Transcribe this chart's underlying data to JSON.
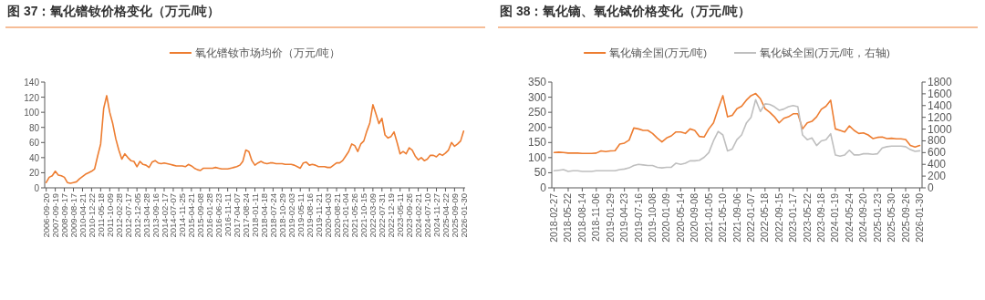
{
  "chart_data": [
    {
      "type": "line",
      "title": "图 37：氧化镨钕价格变化（万元/吨）",
      "legend": "top",
      "grid": false,
      "ylim": [
        0,
        140
      ],
      "yticks": [
        0,
        20,
        40,
        60,
        80,
        100,
        120,
        140
      ],
      "categories": [
        "2006-09-20",
        null,
        null,
        "2007-09-19",
        null,
        null,
        "2008-09-17",
        null,
        null,
        "2009-08-17",
        null,
        null,
        "2010-04-21",
        null,
        null,
        "2010-12-22",
        null,
        null,
        "2011-05-18",
        null,
        null,
        "2011-10-09",
        null,
        null,
        "2012-02-28",
        null,
        null,
        "2012-07-17",
        null,
        null,
        "2012-12-05",
        null,
        null,
        "2013-04-28",
        null,
        null,
        "2013-09-16",
        null,
        null,
        "2014-02-17",
        null,
        null,
        "2014-07-07",
        null,
        null,
        "2014-11-25",
        null,
        null,
        "2015-04-21",
        null,
        null,
        "2015-09-08",
        null,
        null,
        "2016-01-28",
        null,
        null,
        "2016-06-23",
        null,
        null,
        "2016-11-11",
        null,
        null,
        "2017-04-07",
        null,
        null,
        "2017-08-24",
        null,
        null,
        "2018-01-11",
        null,
        null,
        "2018-04-18",
        null,
        null,
        "2018-07-24",
        null,
        null,
        "2018-10-29",
        null,
        null,
        "2019-02-03",
        null,
        null,
        "2019-05-11",
        null,
        null,
        "2019-08-16",
        null,
        null,
        "2019-11-21",
        null,
        null,
        "2020-04-03",
        null,
        null,
        "2020-08-21",
        null,
        null,
        "2021-01-04",
        null,
        null,
        "2021-05-26",
        null,
        null,
        "2021-10-15",
        null,
        null,
        "2022-03-09",
        null,
        null,
        "2022-07-31",
        null,
        null,
        "2022-12-19",
        null,
        null,
        "2023-05-11",
        null,
        null,
        "2023-09-26",
        null,
        null,
        "2024-02-21",
        null,
        null,
        "2024-07-10",
        null,
        null,
        "2024-11-27",
        null,
        null,
        "2025-04-22",
        null,
        null,
        "2025-09-09",
        null,
        null,
        "2026-01-30"
      ],
      "series": [
        {
          "name": "氧化镨钕市场均价（万元/吨）",
          "color": "#ed7d31",
          "values": [
            7,
            14,
            16,
            22,
            17,
            16,
            14,
            7,
            6,
            7,
            8,
            12,
            15,
            18,
            20,
            22,
            25,
            42,
            58,
            105,
            122,
            100,
            85,
            65,
            50,
            38,
            45,
            40,
            36,
            35,
            28,
            35,
            31,
            30,
            27,
            34,
            36,
            33,
            32,
            33,
            32,
            31,
            30,
            29,
            29,
            29,
            28,
            31,
            29,
            26,
            24,
            23,
            26,
            26,
            26,
            26,
            27,
            26,
            25,
            25,
            25,
            26,
            27,
            28,
            30,
            35,
            50,
            48,
            36,
            30,
            33,
            35,
            33,
            32,
            33,
            33,
            32,
            32,
            32,
            31,
            31,
            31,
            30,
            28,
            26,
            33,
            34,
            30,
            31,
            30,
            28,
            28,
            28,
            27,
            27,
            30,
            33,
            33,
            36,
            42,
            48,
            58,
            56,
            48,
            58,
            62,
            75,
            86,
            110,
            98,
            85,
            92,
            70,
            66,
            68,
            74,
            60,
            45,
            48,
            45,
            53,
            50,
            42,
            37,
            40,
            36,
            38,
            43,
            43,
            41,
            45,
            43,
            46,
            50,
            60,
            55,
            58,
            62,
            75
          ]
        }
      ]
    },
    {
      "type": "line",
      "title": "图 38：氧化镝、氧化铽价格变化（万元/吨）",
      "legend": "top",
      "grid": false,
      "ylim": [
        0,
        350
      ],
      "yticks": [
        0,
        50,
        100,
        150,
        200,
        250,
        300,
        350
      ],
      "y2lim": [
        0,
        1800
      ],
      "y2ticks": [
        0,
        200,
        400,
        600,
        800,
        1000,
        1200,
        1400,
        1600,
        1800
      ],
      "categories": [
        "2018-02-27",
        null,
        null,
        "2018-05-22",
        null,
        null,
        "2018-08-14",
        null,
        null,
        "2018-11-06",
        null,
        null,
        "2019-01-29",
        null,
        null,
        "2019-04-23",
        null,
        null,
        "2019-07-16",
        null,
        null,
        "2019-10-08",
        null,
        null,
        "2020-01-09",
        null,
        null,
        "2020-05-14",
        null,
        null,
        "2020-09-08",
        null,
        null,
        "2021-01-05",
        null,
        null,
        "2021-05-10",
        null,
        null,
        "2021-09-06",
        null,
        null,
        "2022-01-07",
        null,
        null,
        "2022-05-18",
        null,
        null,
        "2022-09-15",
        null,
        null,
        "2023-01-17",
        null,
        null,
        "2023-05-22",
        null,
        null,
        "2023-09-18",
        null,
        null,
        "2024-01-19",
        null,
        null,
        "2024-05-24",
        null,
        null,
        "2024-09-20",
        null,
        null,
        "2025-01-23",
        null,
        null,
        "2025-05-30",
        null,
        null,
        "2025-09-26",
        null,
        null,
        "2026-01-30"
      ],
      "series": [
        {
          "name": "氧化镝全国(万元/吨)",
          "color": "#ed7d31",
          "values": [
            117,
            118,
            117,
            115,
            115,
            115,
            114,
            114,
            114,
            115,
            122,
            120,
            122,
            123,
            145,
            148,
            158,
            198,
            195,
            190,
            190,
            180,
            165,
            152,
            165,
            172,
            185,
            185,
            180,
            195,
            190,
            170,
            168,
            195,
            215,
            262,
            305,
            235,
            240,
            262,
            270,
            290,
            305,
            312,
            295,
            262,
            250,
            235,
            215,
            230,
            235,
            245,
            245,
            195,
            215,
            220,
            235,
            260,
            270,
            290,
            195,
            190,
            185,
            205,
            190,
            180,
            182,
            175,
            163,
            167,
            168,
            163,
            164,
            162,
            162,
            160,
            140,
            135,
            140
          ]
        },
        {
          "name": "氧化铽全国(万元/吨，右轴)",
          "color": "#bfbfbf",
          "axis": "y2",
          "values": [
            290,
            300,
            310,
            280,
            290,
            290,
            280,
            280,
            280,
            290,
            290,
            290,
            290,
            290,
            310,
            320,
            340,
            380,
            400,
            390,
            380,
            380,
            350,
            340,
            350,
            350,
            420,
            400,
            420,
            460,
            460,
            470,
            520,
            600,
            800,
            960,
            900,
            630,
            660,
            820,
            900,
            1100,
            1200,
            1500,
            1300,
            1430,
            1420,
            1380,
            1320,
            1340,
            1380,
            1400,
            1380,
            900,
            820,
            850,
            720,
            800,
            820,
            920,
            560,
            540,
            560,
            640,
            560,
            560,
            580,
            580,
            570,
            580,
            680,
            700,
            710,
            710,
            710,
            700,
            650,
            620,
            630
          ]
        }
      ]
    }
  ]
}
